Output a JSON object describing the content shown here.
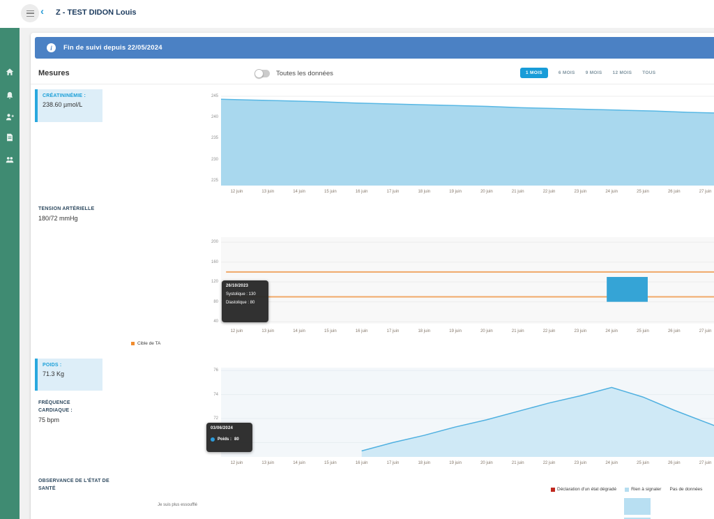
{
  "topbar": {
    "title": "Z - TEST DIDON Louis",
    "back_icon": "‹"
  },
  "sidebar": {
    "items": [
      {
        "icon": "home-icon"
      },
      {
        "icon": "bell-icon"
      },
      {
        "icon": "patient-icon"
      },
      {
        "icon": "document-icon"
      },
      {
        "icon": "team-icon"
      }
    ]
  },
  "banner": {
    "text": "Fin de suivi depuis 22/05/2024",
    "color": "#4b81c4"
  },
  "measures_header": {
    "title": "Mesures",
    "toggle_label": "Toutes les données",
    "toggle_on": false,
    "ranges": [
      {
        "label": "1 MOIS",
        "active": true
      },
      {
        "label": "6 MOIS",
        "active": false
      },
      {
        "label": "9 MOIS",
        "active": false
      },
      {
        "label": "12 MOIS",
        "active": false
      },
      {
        "label": "TOUS",
        "active": false
      }
    ],
    "active_color": "#189cd8"
  },
  "metrics": [
    {
      "label": "CRÉATININÉMIE :",
      "value": "238.60 µmol/L",
      "highlighted": true
    },
    {
      "label": "TENSION ARTÉRIELLE",
      "value": "180/72 mmHg",
      "highlighted": false
    },
    {
      "label": "POIDS :",
      "value": "71.3 Kg",
      "highlighted": true
    },
    {
      "label": "FRÉQUENCE CARDIAQUE :",
      "value": "75 bpm",
      "highlighted": false
    },
    {
      "label": "OBSERVANCE DE L'ÉTAT DE SANTÉ",
      "value": "",
      "highlighted": false
    }
  ],
  "tooltips": {
    "tension": {
      "date": "26/10/2023",
      "lines": [
        "Systolique : 130",
        "Diastolique : 80"
      ]
    },
    "poids": {
      "date": "03/06/2024",
      "label": "Poids :",
      "value": "80"
    }
  },
  "legends": {
    "tension": [
      {
        "label": "Cible de TA",
        "color": "#f08c2e"
      }
    ],
    "observance": [
      {
        "label": "Déclaration d'un état dégradé",
        "color": "#c0281e"
      },
      {
        "label": "Rien à signaler",
        "color": "#b5ddf0"
      },
      {
        "label": "Pas de données",
        "color": "#dcdcdc"
      }
    ]
  },
  "chart_data": [
    {
      "type": "area",
      "name": "creatininemie",
      "x": [
        "12 juin",
        "13 juin",
        "14 juin",
        "15 juin",
        "16 juin",
        "17 juin",
        "18 juin",
        "19 juin",
        "20 juin",
        "21 juin",
        "22 juin",
        "23 juin",
        "24 juin",
        "25 juin",
        "26 juin",
        "27 juin"
      ],
      "values": [
        244.3,
        244.1,
        243.9,
        243.7,
        243.4,
        243.2,
        243.0,
        242.8,
        242.6,
        242.3,
        242.1,
        241.9,
        241.7,
        241.5,
        241.2,
        241.0
      ],
      "yticks": [
        245,
        240,
        235,
        230,
        225
      ],
      "ylim": [
        223.8,
        245.5
      ],
      "fill": "#a9d8ee",
      "stroke": "#57b7e4",
      "grid": "#ededed",
      "xmode": "full"
    },
    {
      "type": "bar",
      "name": "tension-arterielle",
      "x": [
        "12 juin",
        "13 juin",
        "14 juin",
        "15 juin",
        "16 juin",
        "17 juin",
        "18 juin",
        "19 juin",
        "20 juin",
        "21 juin",
        "22 juin",
        "23 juin",
        "24 juin",
        "25 juin",
        "26 juin",
        "27 juin"
      ],
      "bars": [
        {
          "x": "24 juin",
          "low": 80,
          "high": 130
        }
      ],
      "target_lines": [
        140,
        90
      ],
      "target_label": "Cible de TA",
      "target_color": "#f0a868",
      "bar_color": "#35a4d6",
      "yticks": [
        200,
        160,
        120,
        80,
        40
      ],
      "ylim": [
        36,
        210
      ],
      "grid": "#ececec"
    },
    {
      "type": "area",
      "name": "poids",
      "x": [
        "12 juin",
        "13 juin",
        "14 juin",
        "15 juin",
        "16 juin",
        "17 juin",
        "18 juin",
        "19 juin",
        "20 juin",
        "21 juin",
        "22 juin",
        "23 juin",
        "24 juin",
        "25 juin",
        "26 juin",
        "27 juin"
      ],
      "values": [
        null,
        null,
        null,
        null,
        69.3,
        70.0,
        70.6,
        71.3,
        71.9,
        72.6,
        73.3,
        73.9,
        74.6,
        73.8,
        72.7,
        71.7
      ],
      "yticks": [
        76,
        74,
        72,
        70
      ],
      "ylim": [
        68.8,
        76.25
      ],
      "fill": "#cfe9f6",
      "stroke": "#4fb0e0",
      "grid": "#e7edf1",
      "xmode": "slots",
      "extend_right": true
    },
    {
      "type": "heatmap",
      "name": "observance-etat-sante",
      "x": [
        "12 juin",
        "13 juin",
        "14 juin",
        "15 juin",
        "16 juin",
        "17 juin",
        "18 juin",
        "19 juin",
        "20 juin",
        "21 juin",
        "22 juin",
        "23 juin",
        "24 juin",
        "25 juin",
        "26 juin",
        "27 juin"
      ],
      "rows": [
        "Je suis plus essoufflé",
        ""
      ],
      "cells": [
        {
          "row": 0,
          "x": "25 juin",
          "status": "Rien à signaler"
        },
        {
          "row": 1,
          "x": "25 juin",
          "status": "Rien à signaler"
        }
      ],
      "cell_color": "#b8dff2"
    }
  ]
}
